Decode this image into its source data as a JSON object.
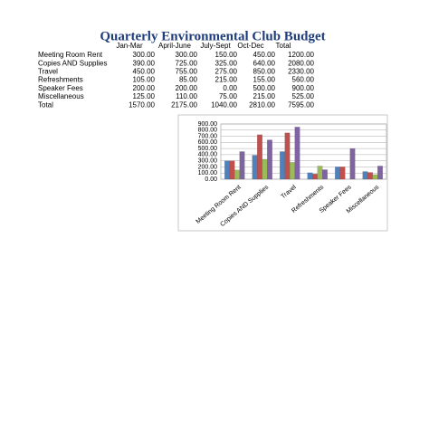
{
  "title": "Quarterly Environmental Club Budget",
  "table": {
    "header": [
      "Jan-Mar",
      "April-June",
      "July-Sept",
      "Oct-Dec",
      "Total"
    ],
    "rows": [
      {
        "label": "Meeting Room Rent",
        "cells": [
          "300.00",
          "300.00",
          "150.00",
          "450.00",
          "1200.00"
        ]
      },
      {
        "label": "Copies AND Supplies",
        "cells": [
          "390.00",
          "725.00",
          "325.00",
          "640.00",
          "2080.00"
        ]
      },
      {
        "label": "Travel",
        "cells": [
          "450.00",
          "755.00",
          "275.00",
          "850.00",
          "2330.00"
        ]
      },
      {
        "label": "Refreshments",
        "cells": [
          "105.00",
          "85.00",
          "215.00",
          "155.00",
          "560.00"
        ]
      },
      {
        "label": "Speaker Fees",
        "cells": [
          "200.00",
          "200.00",
          "0.00",
          "500.00",
          "900.00"
        ]
      },
      {
        "label": "Miscellaneous",
        "cells": [
          "125.00",
          "110.00",
          "75.00",
          "215.00",
          "525.00"
        ]
      },
      {
        "label": "Total",
        "cells": [
          "1570.00",
          "2175.00",
          "1040.00",
          "2810.00",
          "7595.00"
        ]
      }
    ]
  },
  "chart_data": {
    "type": "bar",
    "categories": [
      "Meeting Room Rent",
      "Copies AND Supplies",
      "Travel",
      "Refreshments",
      "Speaker Fees",
      "Miscellaneous"
    ],
    "series": [
      {
        "color": "#4f81bd",
        "values": [
          300,
          390,
          450,
          105,
          200,
          125
        ]
      },
      {
        "color": "#c0504d",
        "values": [
          300,
          725,
          755,
          85,
          200,
          110
        ]
      },
      {
        "color": "#9bbb59",
        "values": [
          150,
          325,
          275,
          215,
          0,
          75
        ]
      },
      {
        "color": "#8064a2",
        "values": [
          450,
          640,
          850,
          155,
          500,
          215
        ]
      }
    ],
    "ylim": [
      0,
      900
    ],
    "yticks": [
      {
        "value": 0,
        "label": "0.00"
      },
      {
        "value": 100,
        "label": "100.00"
      },
      {
        "value": 200,
        "label": "200.00"
      },
      {
        "value": 300,
        "label": "300.00"
      },
      {
        "value": 400,
        "label": "400.00"
      },
      {
        "value": 500,
        "label": "500.00"
      },
      {
        "value": 600,
        "label": "600.00"
      },
      {
        "value": 700,
        "label": "700.00"
      },
      {
        "value": 800,
        "label": "800.00"
      },
      {
        "value": 900,
        "label": "900.00"
      }
    ],
    "grid": true
  }
}
